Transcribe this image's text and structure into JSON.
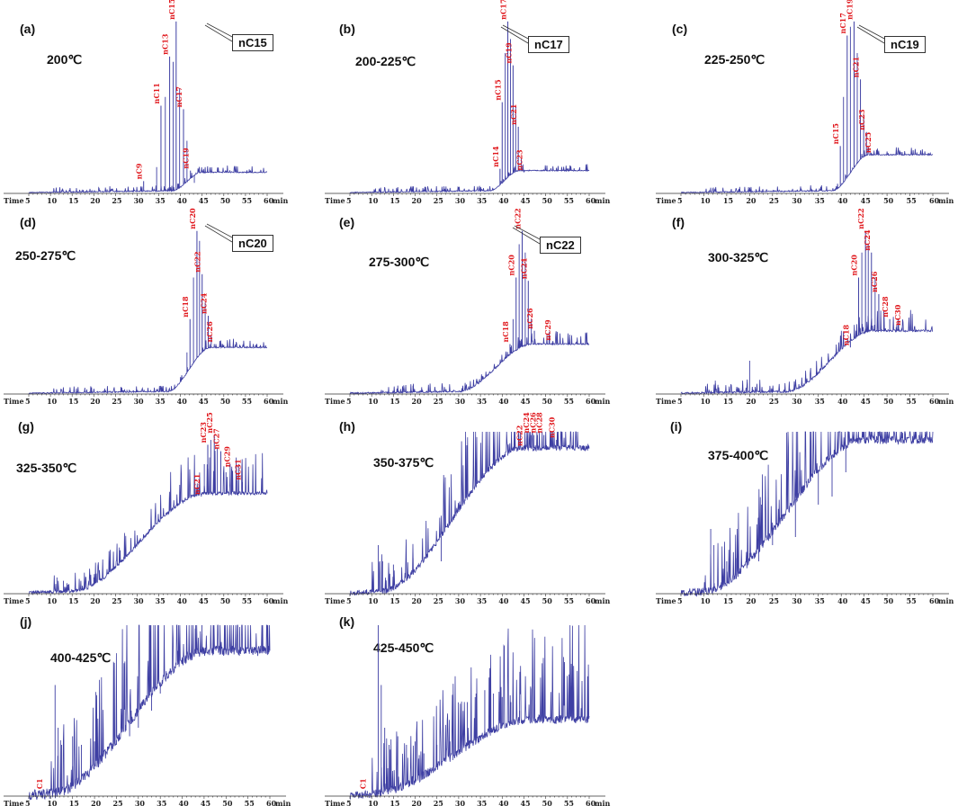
{
  "figure": {
    "panels": [
      {
        "label": "(a)",
        "title": "200℃",
        "callout": "nC15"
      },
      {
        "label": "(b)",
        "title": "200-225℃",
        "callout": "nC17"
      },
      {
        "label": "(c)",
        "title": "225-250℃",
        "callout": "nC19"
      },
      {
        "label": "(d)",
        "title": "250-275℃",
        "callout": "nC20"
      },
      {
        "label": "(e)",
        "title": "275-300℃",
        "callout": "nC22"
      },
      {
        "label": "(f)",
        "title": "300-325℃",
        "callout": ""
      },
      {
        "label": "(g)",
        "title": "325-350℃",
        "callout": ""
      },
      {
        "label": "(h)",
        "title": "350-375℃",
        "callout": ""
      },
      {
        "label": "(i)",
        "title": "375-400℃",
        "callout": ""
      },
      {
        "label": "(j)",
        "title": "400-425℃",
        "callout": ""
      },
      {
        "label": "(k)",
        "title": "425-450℃",
        "callout": ""
      }
    ],
    "axis": {
      "time_label": "Time",
      "min_label": "min",
      "ticks": [
        "5",
        "10",
        "15",
        "20",
        "25",
        "30",
        "35",
        "40",
        "45",
        "50",
        "55",
        "60"
      ]
    },
    "colors": {
      "trace": "#3e3fa3",
      "peak_label": "#e0161b",
      "axis": "#333333"
    }
  },
  "chart_data": [
    {
      "type": "line",
      "panel": "(a)",
      "title": "200℃",
      "x_unit": "min",
      "xlim": [
        5,
        60
      ],
      "baseline_rise": [
        38,
        45
      ],
      "plateau": 0.12,
      "noise": 0.005,
      "peaks": [
        {
          "name": "nC9",
          "x": 31.5,
          "h": 0.07
        },
        {
          "name": "nC11",
          "x": 35.5,
          "h": 0.5
        },
        {
          "name": "nC13",
          "x": 37.5,
          "h": 0.78
        },
        {
          "name": "nC15",
          "x": 39,
          "h": 0.98
        },
        {
          "name": "nC17",
          "x": 40.7,
          "h": 0.48
        },
        {
          "name": "nC19",
          "x": 42.3,
          "h": 0.13
        }
      ],
      "minor_peaks": [
        {
          "x": 34.5,
          "h": 0.15
        },
        {
          "x": 36.5,
          "h": 0.55
        },
        {
          "x": 38.3,
          "h": 0.75
        },
        {
          "x": 39.8,
          "h": 0.6
        },
        {
          "x": 41.5,
          "h": 0.3
        },
        {
          "x": 43.2,
          "h": 0.06
        }
      ]
    },
    {
      "type": "line",
      "panel": "(b)",
      "title": "200-225℃",
      "x_unit": "min",
      "xlim": [
        5,
        60
      ],
      "baseline_rise": [
        37,
        44
      ],
      "plateau": 0.13,
      "noise": 0.005,
      "peaks": [
        {
          "name": "nC14",
          "x": 39.5,
          "h": 0.14
        },
        {
          "name": "nC15",
          "x": 40,
          "h": 0.52
        },
        {
          "name": "nC17",
          "x": 41.3,
          "h": 0.98
        },
        {
          "name": "nC19",
          "x": 42.5,
          "h": 0.73
        },
        {
          "name": "nC21",
          "x": 43.7,
          "h": 0.38
        },
        {
          "name": "nC23",
          "x": 45,
          "h": 0.12
        }
      ],
      "minor_peaks": [
        {
          "x": 40.7,
          "h": 0.8
        },
        {
          "x": 41.9,
          "h": 0.88
        },
        {
          "x": 43.1,
          "h": 0.5
        },
        {
          "x": 44.4,
          "h": 0.2
        }
      ]
    },
    {
      "type": "line",
      "panel": "(c)",
      "title": "225-250℃",
      "x_unit": "min",
      "xlim": [
        5,
        60
      ],
      "baseline_rise": [
        38,
        46
      ],
      "plateau": 0.22,
      "noise": 0.005,
      "peaks": [
        {
          "name": "nC15",
          "x": 39.8,
          "h": 0.27
        },
        {
          "name": "nC17",
          "x": 41.3,
          "h": 0.9
        },
        {
          "name": "nC19",
          "x": 42.8,
          "h": 0.98
        },
        {
          "name": "nC21",
          "x": 44.2,
          "h": 0.65
        },
        {
          "name": "nC23",
          "x": 45.5,
          "h": 0.35
        },
        {
          "name": "nC25",
          "x": 46.8,
          "h": 0.22
        }
      ],
      "minor_peaks": [
        {
          "x": 40.5,
          "h": 0.55
        },
        {
          "x": 42,
          "h": 0.95
        },
        {
          "x": 43.5,
          "h": 0.8
        },
        {
          "x": 44.9,
          "h": 0.45
        }
      ]
    },
    {
      "type": "line",
      "panel": "(d)",
      "title": "250-275℃",
      "x_unit": "min",
      "xlim": [
        5,
        60
      ],
      "baseline_rise": [
        37,
        47
      ],
      "plateau": 0.28,
      "noise": 0.006,
      "peaks": [
        {
          "name": "nC18",
          "x": 42.2,
          "h": 0.45
        },
        {
          "name": "nC20",
          "x": 43.8,
          "h": 0.98
        },
        {
          "name": "nC22",
          "x": 45,
          "h": 0.72
        },
        {
          "name": "nC24",
          "x": 46.4,
          "h": 0.47
        },
        {
          "name": "nC26",
          "x": 47.8,
          "h": 0.3
        }
      ],
      "minor_peaks": [
        {
          "x": 41.5,
          "h": 0.25
        },
        {
          "x": 43,
          "h": 0.7
        },
        {
          "x": 44.4,
          "h": 0.92
        },
        {
          "x": 45.7,
          "h": 0.55
        },
        {
          "x": 47.1,
          "h": 0.35
        }
      ]
    },
    {
      "type": "line",
      "panel": "(e)",
      "title": "275-300℃",
      "x_unit": "min",
      "xlim": [
        5,
        60
      ],
      "baseline_rise": [
        30,
        47
      ],
      "plateau": 0.3,
      "noise": 0.008,
      "peaks": [
        {
          "name": "nC18",
          "x": 41.8,
          "h": 0.3
        },
        {
          "name": "nC20",
          "x": 43.2,
          "h": 0.7
        },
        {
          "name": "nC22",
          "x": 44.6,
          "h": 0.98
        },
        {
          "name": "nC24",
          "x": 46,
          "h": 0.68
        },
        {
          "name": "nC26",
          "x": 47.4,
          "h": 0.38
        },
        {
          "name": "nC29",
          "x": 51.5,
          "h": 0.31
        }
      ],
      "minor_peaks": [
        {
          "x": 42.5,
          "h": 0.45
        },
        {
          "x": 43.9,
          "h": 0.9
        },
        {
          "x": 45.3,
          "h": 0.85
        },
        {
          "x": 46.7,
          "h": 0.45
        },
        {
          "x": 19.5,
          "h": 0.05
        }
      ]
    },
    {
      "type": "line",
      "panel": "(f)",
      "title": "300-325℃",
      "x_unit": "min",
      "xlim": [
        5,
        60
      ],
      "baseline_rise": [
        28,
        47
      ],
      "plateau": 0.38,
      "noise": 0.012,
      "peaks": [
        {
          "name": "nC18",
          "x": 42,
          "h": 0.28
        },
        {
          "name": "nC20",
          "x": 43.8,
          "h": 0.7
        },
        {
          "name": "nC22",
          "x": 45.3,
          "h": 0.98
        },
        {
          "name": "nC24",
          "x": 46.6,
          "h": 0.85
        },
        {
          "name": "nC26",
          "x": 48.2,
          "h": 0.6
        },
        {
          "name": "nC28",
          "x": 50.6,
          "h": 0.45
        },
        {
          "name": "nC30",
          "x": 53.3,
          "h": 0.4
        }
      ],
      "minor_peaks": [
        {
          "x": 20,
          "h": 0.2
        },
        {
          "x": 12.5,
          "h": 0.08
        },
        {
          "x": 44.5,
          "h": 0.85
        },
        {
          "x": 45.9,
          "h": 0.9
        },
        {
          "x": 47.4,
          "h": 0.7
        },
        {
          "x": 49.3,
          "h": 0.5
        },
        {
          "x": 52,
          "h": 0.4
        }
      ]
    },
    {
      "type": "line",
      "panel": "(g)",
      "title": "325-350℃",
      "x_unit": "min",
      "xlim": [
        5,
        60
      ],
      "baseline_rise": [
        15,
        46
      ],
      "plateau": 0.62,
      "noise": 0.02,
      "peaks": [
        {
          "name": "nC21",
          "x": 44.8,
          "h": 0.6
        },
        {
          "name": "nC23",
          "x": 46.3,
          "h": 0.92
        },
        {
          "name": "nC25",
          "x": 47.8,
          "h": 0.98
        },
        {
          "name": "nC27",
          "x": 49.3,
          "h": 0.88
        },
        {
          "name": "nC29",
          "x": 51.8,
          "h": 0.77
        },
        {
          "name": "nC31",
          "x": 54.3,
          "h": 0.69
        }
      ],
      "minor_peaks": [
        {
          "x": 11.5,
          "h": 0.1
        },
        {
          "x": 13,
          "h": 0.08
        },
        {
          "x": 20,
          "h": 0.1
        },
        {
          "x": 45.5,
          "h": 0.8
        },
        {
          "x": 47,
          "h": 0.95
        },
        {
          "x": 48.5,
          "h": 0.9
        },
        {
          "x": 50.5,
          "h": 0.75
        },
        {
          "x": 53,
          "h": 0.7
        }
      ]
    },
    {
      "type": "line",
      "panel": "(h)",
      "title": "350-375℃",
      "x_unit": "min",
      "xlim": [
        5,
        60
      ],
      "baseline_rise": [
        12,
        45
      ],
      "plateau": 0.9,
      "noise": 0.035,
      "peaks": [
        {
          "name": "nC22",
          "x": 45,
          "h": 0.9
        },
        {
          "name": "nC24",
          "x": 46.6,
          "h": 0.98
        },
        {
          "name": "nC26",
          "x": 48.1,
          "h": 0.98
        },
        {
          "name": "nC28",
          "x": 49.6,
          "h": 0.98
        },
        {
          "name": "nC30",
          "x": 52.5,
          "h": 0.95
        }
      ],
      "minor_peaks": [
        {
          "x": 11.5,
          "h": 0.3
        },
        {
          "x": 12.5,
          "h": 0.2
        },
        {
          "x": 15,
          "h": 0.18
        },
        {
          "x": 19.5,
          "h": 0.22
        },
        {
          "x": 26,
          "h": 0.2
        },
        {
          "x": 45.8,
          "h": 0.98
        },
        {
          "x": 47.3,
          "h": 0.98
        },
        {
          "x": 51,
          "h": 0.95
        }
      ]
    },
    {
      "type": "line",
      "panel": "(i)",
      "title": "375-400℃",
      "x_unit": "min",
      "xlim": [
        5,
        60
      ],
      "baseline_rise": [
        10,
        45
      ],
      "plateau": 0.95,
      "noise": 0.05,
      "peaks": [],
      "minor_peaks": [
        {
          "x": 11.5,
          "h": 0.4
        },
        {
          "x": 12.2,
          "h": 0.3
        },
        {
          "x": 15,
          "h": 0.2
        },
        {
          "x": 17,
          "h": 0.22
        },
        {
          "x": 20,
          "h": 0.25
        },
        {
          "x": 22,
          "h": 0.2
        },
        {
          "x": 25,
          "h": 0.3
        },
        {
          "x": 30,
          "h": 0.35
        },
        {
          "x": 35,
          "h": 0.55
        },
        {
          "x": 38,
          "h": 0.6
        },
        {
          "x": 41,
          "h": 0.75
        },
        {
          "x": 45.3,
          "h": 1.0
        },
        {
          "x": 46.5,
          "h": 1.0
        },
        {
          "x": 48,
          "h": 1.0
        },
        {
          "x": 50,
          "h": 1.0
        },
        {
          "x": 52,
          "h": 1.0
        },
        {
          "x": 54,
          "h": 0.99
        },
        {
          "x": 57,
          "h": 0.98
        }
      ]
    },
    {
      "type": "line",
      "panel": "(j)",
      "title": "400-425℃",
      "x_unit": "min",
      "xlim": [
        5,
        60
      ],
      "baseline_rise": [
        10,
        46
      ],
      "plateau": 0.85,
      "noise": 0.06,
      "peaks": [
        {
          "name": "C1",
          "x": 8.5,
          "h": 0.03
        }
      ],
      "minor_peaks": [
        {
          "x": 11,
          "h": 0.65
        },
        {
          "x": 11.7,
          "h": 0.4
        },
        {
          "x": 12.5,
          "h": 0.3
        },
        {
          "x": 15,
          "h": 0.35
        },
        {
          "x": 17,
          "h": 0.3
        },
        {
          "x": 20,
          "h": 0.32
        },
        {
          "x": 22,
          "h": 0.25
        },
        {
          "x": 25,
          "h": 0.3
        },
        {
          "x": 28,
          "h": 0.35
        },
        {
          "x": 30,
          "h": 0.4
        },
        {
          "x": 33,
          "h": 0.5
        },
        {
          "x": 35,
          "h": 0.6
        },
        {
          "x": 37,
          "h": 0.72
        },
        {
          "x": 39,
          "h": 0.85
        },
        {
          "x": 41,
          "h": 0.95
        },
        {
          "x": 43,
          "h": 0.98
        },
        {
          "x": 44.5,
          "h": 1.0
        }
      ]
    },
    {
      "type": "line",
      "panel": "(k)",
      "title": "425-450℃",
      "x_unit": "min",
      "xlim": [
        5,
        60
      ],
      "baseline_rise": [
        10,
        47
      ],
      "plateau": 0.45,
      "noise": 0.05,
      "peaks": [
        {
          "name": "C1",
          "x": 9,
          "h": 0.03
        }
      ],
      "minor_peaks": [
        {
          "x": 11.5,
          "h": 1.0
        },
        {
          "x": 12.2,
          "h": 0.65
        },
        {
          "x": 13,
          "h": 0.4
        },
        {
          "x": 14,
          "h": 0.3
        },
        {
          "x": 16,
          "h": 0.35
        },
        {
          "x": 18,
          "h": 0.3
        },
        {
          "x": 20,
          "h": 0.32
        },
        {
          "x": 22,
          "h": 0.25
        },
        {
          "x": 25,
          "h": 0.3
        },
        {
          "x": 28,
          "h": 0.32
        },
        {
          "x": 32,
          "h": 0.55
        },
        {
          "x": 34,
          "h": 0.6
        },
        {
          "x": 36,
          "h": 0.62
        },
        {
          "x": 38,
          "h": 0.6
        },
        {
          "x": 40,
          "h": 0.58
        },
        {
          "x": 42,
          "h": 0.55
        },
        {
          "x": 44,
          "h": 0.5
        }
      ]
    }
  ]
}
